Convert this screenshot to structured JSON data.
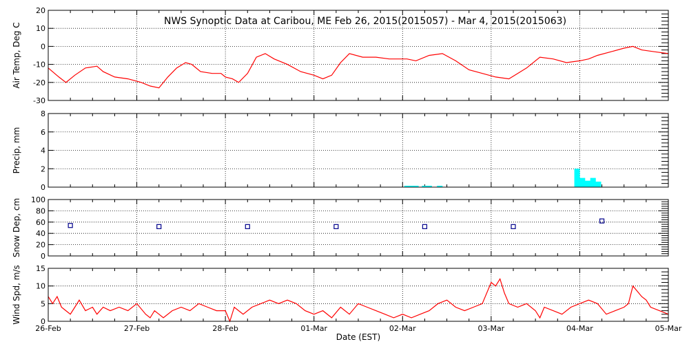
{
  "figure": {
    "title": "NWS Synoptic Data at Caribou, ME   Feb 26, 2015(2015057) - Mar  4, 2015(2015063)",
    "xlabel": "Date (EST)",
    "x_tick_labels": [
      "26-Feb",
      "27-Feb",
      "28-Feb",
      "01-Mar",
      "02-Mar",
      "03-Mar",
      "04-Mar",
      "05-Mar"
    ],
    "x_range_days": [
      0,
      7
    ],
    "colors": {
      "line": "#ff0000",
      "precip_bar": "#00ffff",
      "snow_marker": "#00008b",
      "axis": "#000000"
    }
  },
  "chart_data": [
    {
      "id": "air-temp",
      "type": "line",
      "ylabel": "Air Temp, Deg C",
      "ylim": [
        -30,
        20
      ],
      "yticks": [
        -30,
        -20,
        -10,
        0,
        10,
        20
      ],
      "grid": true,
      "x": [
        0.0,
        0.12,
        0.2,
        0.3,
        0.42,
        0.55,
        0.62,
        0.75,
        0.9,
        1.05,
        1.15,
        1.25,
        1.35,
        1.45,
        1.55,
        1.62,
        1.72,
        1.85,
        1.95,
        2.0,
        2.08,
        2.15,
        2.25,
        2.35,
        2.45,
        2.55,
        2.7,
        2.85,
        3.0,
        3.1,
        3.2,
        3.3,
        3.4,
        3.55,
        3.7,
        3.85,
        3.95,
        4.05,
        4.15,
        4.3,
        4.45,
        4.6,
        4.75,
        4.9,
        5.05,
        5.2,
        5.3,
        5.4,
        5.55,
        5.7,
        5.85,
        6.0,
        6.1,
        6.2,
        6.35,
        6.5,
        6.6,
        6.7,
        6.85,
        7.0
      ],
      "y": [
        -12,
        -17,
        -20,
        -16,
        -12,
        -11,
        -14,
        -17,
        -18,
        -20,
        -22,
        -23,
        -17,
        -12,
        -9,
        -10,
        -14,
        -15,
        -15,
        -17,
        -18,
        -20,
        -15,
        -6,
        -4,
        -7,
        -10,
        -14,
        -16,
        -18,
        -16,
        -9,
        -4,
        -6,
        -6,
        -7,
        -7,
        -7,
        -8,
        -5,
        -4,
        -8,
        -13,
        -15,
        -17,
        -18,
        -15,
        -12,
        -6,
        -7,
        -9,
        -8,
        -7,
        -5,
        -3,
        -1,
        0,
        -2,
        -3,
        -4
      ]
    },
    {
      "id": "precip",
      "type": "bar",
      "ylabel": "Precip, mm",
      "ylim": [
        0,
        8
      ],
      "yticks": [
        0,
        2,
        4,
        6,
        8
      ],
      "grid": true,
      "x": [
        4.05,
        4.1,
        4.15,
        4.25,
        4.3,
        4.42,
        5.97,
        6.03,
        6.09,
        6.15,
        6.21
      ],
      "values": [
        0.15,
        0.15,
        0.15,
        0.15,
        0.15,
        0.15,
        2.0,
        1.0,
        0.7,
        1.0,
        0.6
      ]
    },
    {
      "id": "snow-depth",
      "type": "scatter",
      "ylabel": "Snow Dep, cm",
      "ylim": [
        0,
        100
      ],
      "yticks": [
        0,
        20,
        40,
        60,
        80,
        100
      ],
      "grid": true,
      "x": [
        0.25,
        1.25,
        2.25,
        3.25,
        4.25,
        5.25,
        6.25
      ],
      "y": [
        54,
        52,
        52,
        52,
        52,
        52,
        62
      ]
    },
    {
      "id": "wind-speed",
      "type": "line",
      "ylabel": "Wind Spd, m/s",
      "ylim": [
        0,
        15
      ],
      "yticks": [
        0,
        5,
        10,
        15
      ],
      "grid": true,
      "x": [
        0.0,
        0.05,
        0.1,
        0.15,
        0.2,
        0.25,
        0.3,
        0.35,
        0.42,
        0.5,
        0.55,
        0.62,
        0.7,
        0.8,
        0.9,
        1.0,
        1.1,
        1.15,
        1.2,
        1.25,
        1.3,
        1.4,
        1.5,
        1.6,
        1.7,
        1.8,
        1.9,
        2.0,
        2.05,
        2.1,
        2.15,
        2.2,
        2.3,
        2.4,
        2.5,
        2.6,
        2.7,
        2.8,
        2.9,
        3.0,
        3.1,
        3.2,
        3.3,
        3.4,
        3.5,
        3.6,
        3.7,
        3.8,
        3.9,
        4.0,
        4.1,
        4.2,
        4.3,
        4.4,
        4.5,
        4.6,
        4.7,
        4.8,
        4.9,
        5.0,
        5.05,
        5.1,
        5.15,
        5.2,
        5.3,
        5.4,
        5.5,
        5.55,
        5.6,
        5.7,
        5.8,
        5.9,
        6.0,
        6.1,
        6.2,
        6.3,
        6.4,
        6.5,
        6.55,
        6.6,
        6.7,
        6.75,
        6.8,
        6.9,
        7.0
      ],
      "y": [
        7,
        5,
        7,
        4,
        3,
        2,
        4,
        6,
        3,
        4,
        2,
        4,
        3,
        4,
        3,
        5,
        2,
        1,
        3,
        2,
        1,
        3,
        4,
        3,
        5,
        4,
        3,
        3,
        0,
        4,
        3,
        2,
        4,
        5,
        6,
        5,
        6,
        5,
        3,
        2,
        3,
        1,
        4,
        2,
        5,
        4,
        3,
        2,
        1,
        2,
        1,
        2,
        3,
        5,
        6,
        4,
        3,
        4,
        5,
        11,
        10,
        12,
        8,
        5,
        4,
        5,
        3,
        1,
        4,
        3,
        2,
        4,
        5,
        6,
        5,
        2,
        3,
        4,
        5,
        10,
        7,
        6,
        4,
        3,
        2
      ]
    }
  ]
}
